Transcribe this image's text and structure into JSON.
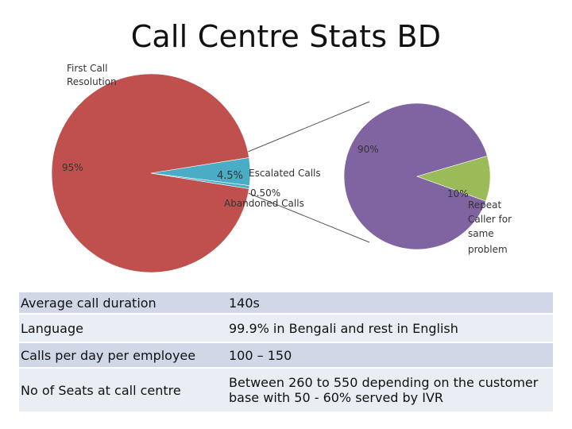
{
  "title": "Call Centre Stats BD",
  "chart_data": [
    {
      "type": "pie",
      "slices": [
        {
          "label": "First Call Resolution",
          "value": 95,
          "display": "95%",
          "color": "#c0504d"
        },
        {
          "label": "Escalated Calls",
          "value": 4.5,
          "display": "4.5%",
          "color": "#4bacc6"
        },
        {
          "label": "Abandoned Calls",
          "value": 0.5,
          "display": "0.50%",
          "color": "#4bacc6"
        }
      ]
    },
    {
      "type": "pie",
      "slices": [
        {
          "label": "",
          "value": 90,
          "display": "90%",
          "color": "#8064a2"
        },
        {
          "label": "Repeat Caller for same problem",
          "value": 10,
          "display": "10%",
          "color": "#9bbb59"
        }
      ]
    }
  ],
  "labels": {
    "first_call_1": "First Call",
    "first_call_2": "Resolution",
    "p95": "95%",
    "p45": "4.5%",
    "escalated": "Escalated Calls",
    "p050": "0.50%",
    "abandoned": "Abandoned Calls",
    "p90": "90%",
    "p10": "10%",
    "repeat_1": "Repeat",
    "repeat_2": "Caller for",
    "repeat_3": "same",
    "repeat_4": "problem"
  },
  "table": [
    {
      "label": "Average call duration",
      "value": "140s"
    },
    {
      "label": "Language",
      "value": " 99.9% in Bengali and rest in English"
    },
    {
      "label": "Calls per day per employee",
      "value": "100 – 150"
    },
    {
      "label": "No of Seats at call centre",
      "value": "Between 260  to 550 depending on the customer base with 50 - 60% served by IVR"
    }
  ]
}
